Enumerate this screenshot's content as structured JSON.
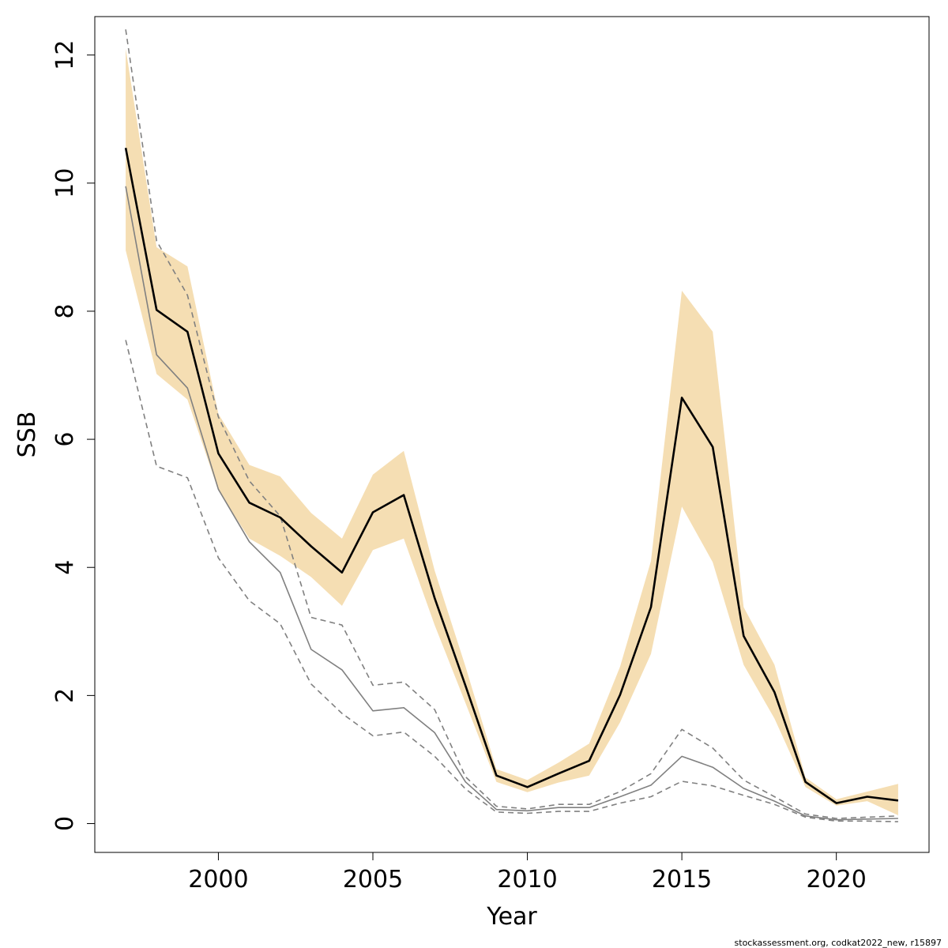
{
  "chart_data": {
    "type": "line",
    "xlabel": "Year",
    "ylabel": "SSB",
    "xlim": [
      1996.0,
      2023.0
    ],
    "ylim": [
      -0.45,
      12.6
    ],
    "x_ticks": [
      2000,
      2005,
      2010,
      2015,
      2020
    ],
    "y_ticks": [
      0,
      2,
      4,
      6,
      8,
      10,
      12
    ],
    "grid": false,
    "legend": "none",
    "footnote": "stockassessment.org, codkat2022_new, r15897",
    "x": [
      1997,
      1998,
      1999,
      2000,
      2001,
      2002,
      2003,
      2004,
      2005,
      2006,
      2007,
      2008,
      2009,
      2010,
      2011,
      2012,
      2013,
      2014,
      2015,
      2016,
      2017,
      2018,
      2019,
      2020,
      2021,
      2022
    ],
    "series": [
      {
        "role": "estimate",
        "color": "#000000",
        "values": [
          10.55,
          8.02,
          7.68,
          5.78,
          5.01,
          4.78,
          4.33,
          3.92,
          4.86,
          5.13,
          3.52,
          2.15,
          0.75,
          0.57,
          0.78,
          0.98,
          2.01,
          3.38,
          6.65,
          5.88,
          2.93,
          2.05,
          0.65,
          0.32,
          0.42,
          0.36
        ]
      },
      {
        "role": "confidence-band",
        "color": "#f5deb3",
        "upper": [
          12.1,
          9.0,
          8.7,
          6.4,
          5.6,
          5.42,
          4.85,
          4.45,
          5.45,
          5.82,
          3.95,
          2.45,
          0.85,
          0.68,
          0.95,
          1.25,
          2.45,
          4.1,
          8.32,
          7.68,
          3.38,
          2.48,
          0.72,
          0.38,
          0.5,
          0.62
        ],
        "lower": [
          8.95,
          7.02,
          6.62,
          5.2,
          4.45,
          4.18,
          3.85,
          3.4,
          4.27,
          4.45,
          3.1,
          1.88,
          0.65,
          0.49,
          0.64,
          0.75,
          1.58,
          2.65,
          4.95,
          4.08,
          2.48,
          1.64,
          0.57,
          0.28,
          0.35,
          0.13
        ]
      },
      {
        "role": "comparison",
        "color": "#808080",
        "values": [
          9.95,
          7.32,
          6.8,
          5.22,
          4.4,
          3.92,
          2.72,
          2.4,
          1.76,
          1.81,
          1.42,
          0.65,
          0.22,
          0.2,
          0.25,
          0.25,
          0.42,
          0.6,
          1.05,
          0.88,
          0.55,
          0.35,
          0.12,
          0.06,
          0.07,
          0.08
        ]
      },
      {
        "role": "comparison-upper",
        "color": "#808080",
        "dashed": true,
        "values": [
          12.4,
          9.1,
          8.25,
          6.35,
          5.35,
          4.8,
          3.22,
          3.1,
          2.16,
          2.21,
          1.78,
          0.73,
          0.27,
          0.23,
          0.3,
          0.3,
          0.5,
          0.78,
          1.47,
          1.18,
          0.68,
          0.42,
          0.15,
          0.08,
          0.1,
          0.12
        ]
      },
      {
        "role": "comparison-lower",
        "color": "#808080",
        "dashed": true,
        "values": [
          7.55,
          5.58,
          5.4,
          4.15,
          3.48,
          3.12,
          2.18,
          1.72,
          1.37,
          1.43,
          1.05,
          0.54,
          0.18,
          0.16,
          0.19,
          0.19,
          0.32,
          0.42,
          0.66,
          0.59,
          0.44,
          0.3,
          0.1,
          0.04,
          0.04,
          0.03
        ]
      }
    ]
  }
}
